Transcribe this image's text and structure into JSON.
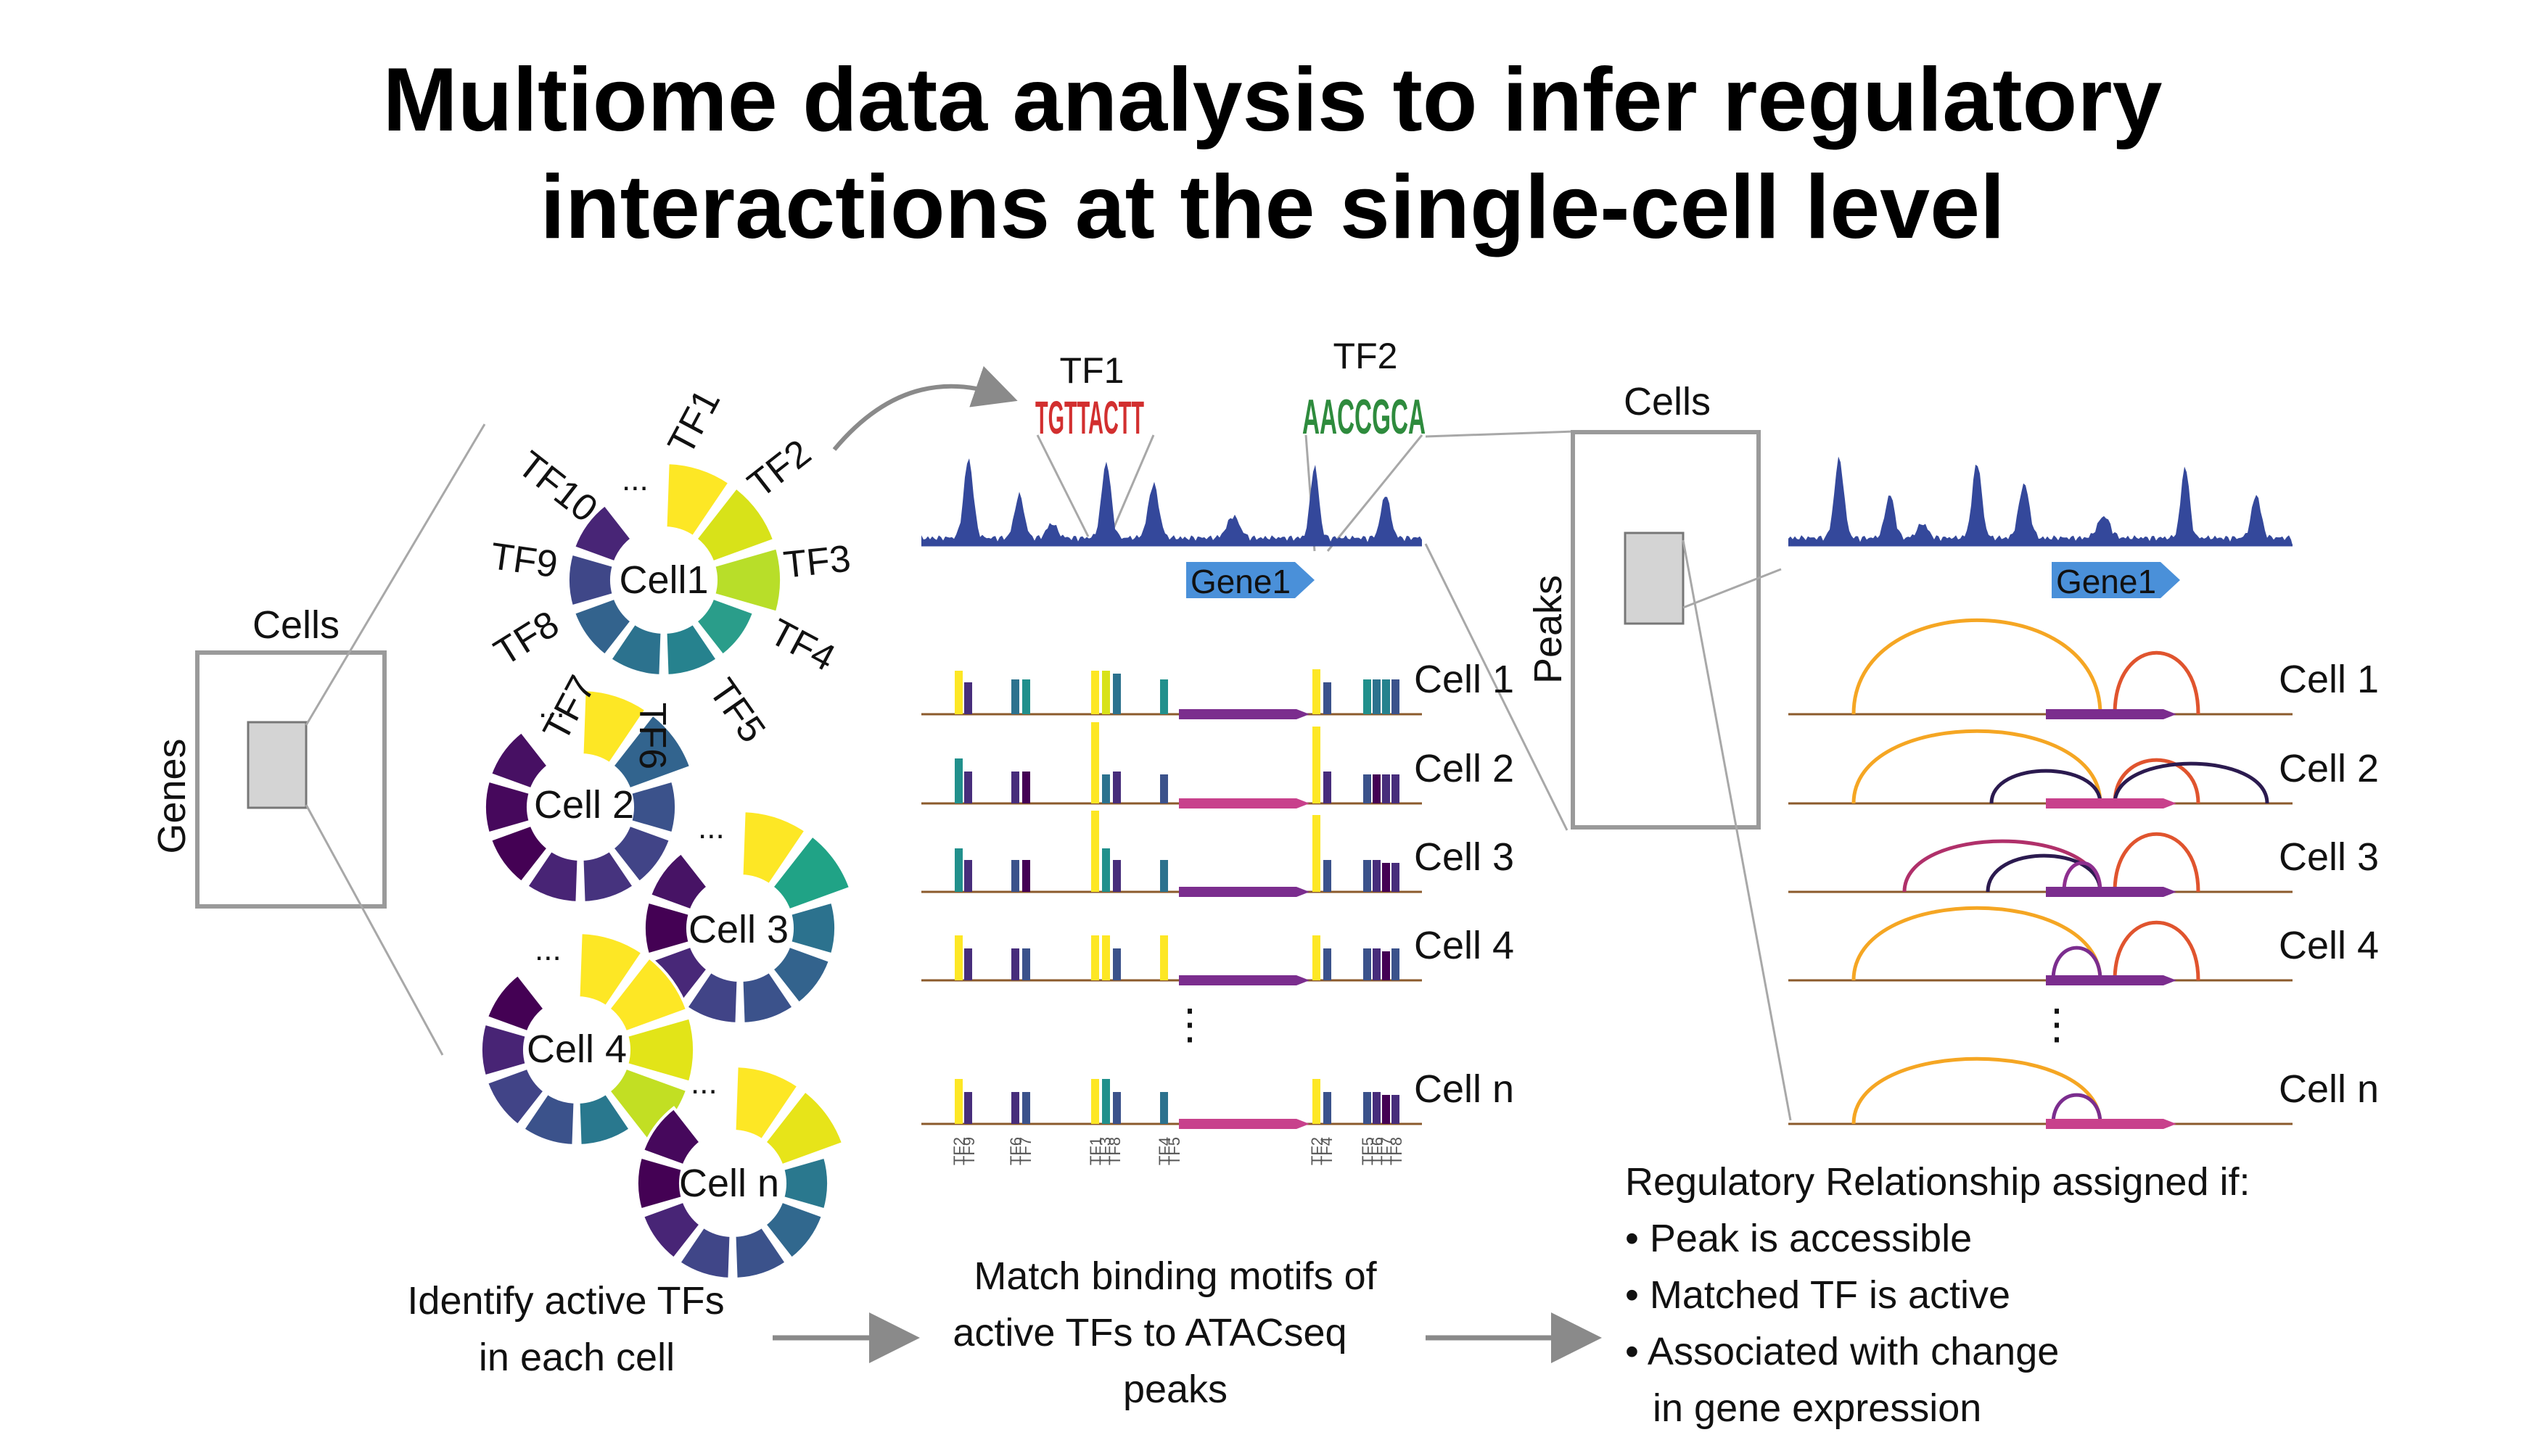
{
  "title": {
    "line1": "Multiome data analysis to infer regulatory",
    "line2": "interactions at the single-cell level"
  },
  "matrix_left": {
    "cols_label": "Cells",
    "rows_label": "Genes"
  },
  "matrix_right": {
    "cols_label": "Cells",
    "rows_label": "Peaks"
  },
  "tf_labels": [
    "TF1",
    "TF2",
    "TF3",
    "TF4",
    "TF5",
    "TF6",
    "TF7",
    "TF8",
    "TF9",
    "TF10"
  ],
  "ellipsis": "...",
  "vertical_dots": "⋮",
  "wheels": [
    {
      "label": "Cell1"
    },
    {
      "label": "Cell 2"
    },
    {
      "label": "Cell 3"
    },
    {
      "label": "Cell 4"
    },
    {
      "label": "Cell n"
    }
  ],
  "motifs": {
    "tf1": "TF1",
    "tf2": "TF2",
    "tf1_logo": "TGTTACTT",
    "tf2_logo": "AACCGCA"
  },
  "gene_label": "Gene1",
  "cell_rows": [
    "Cell 1",
    "Cell 2",
    "Cell 3",
    "Cell 4",
    "Cell n"
  ],
  "tf_ticks": [
    {
      "labels": [
        "TF2",
        "TF9"
      ]
    },
    {
      "labels": [
        "TF6",
        "TF7"
      ]
    },
    {
      "labels": [
        "TF1",
        "TF3",
        "TF8"
      ]
    },
    {
      "labels": [
        "TF4",
        "TF5"
      ]
    },
    {
      "labels": [
        "TF2",
        "TF4"
      ]
    },
    {
      "labels": [
        "TF5",
        "TF6",
        "TF7",
        "TF8"
      ]
    }
  ],
  "steps": {
    "step1": [
      "Identify active TFs",
      "in each cell"
    ],
    "step2": [
      "Match binding motifs of",
      "active TFs to ATACseq",
      "peaks"
    ],
    "step3": [
      "Regulatory Relationship assigned if:",
      "• Peak is accessible",
      "• Matched TF is active",
      "• Associated with change",
      "in gene expression"
    ]
  },
  "colors": {
    "peak_blue": "#34489b",
    "gene_arrow": "#4a90d9",
    "arc_orange": "#f5a623",
    "arc_red": "#e0542e",
    "arc_dark": "#2b1a4f",
    "arc_magenta": "#b0306a",
    "gene_bar_purple": "#7b2d8e",
    "gene_bar_pink": "#c8418c",
    "viridis_yellow": "#fde725",
    "viridis_green": "#35b779",
    "viridis_teal": "#21908c",
    "viridis_blue": "#3b528b",
    "viridis_purple": "#440154"
  }
}
